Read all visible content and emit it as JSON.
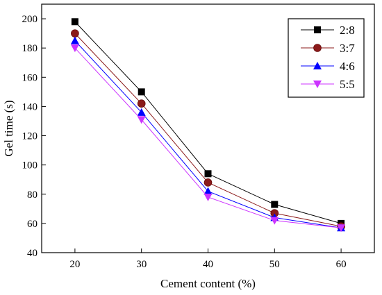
{
  "chart_data": {
    "type": "line",
    "title": "",
    "xlabel": "Cement content (%)",
    "ylabel": "Gel time (s)",
    "x": [
      20,
      30,
      40,
      50,
      60
    ],
    "xlim": [
      15,
      65
    ],
    "ylim": [
      40,
      210
    ],
    "xticks": [
      20,
      30,
      40,
      50,
      60
    ],
    "yticks": [
      40,
      60,
      80,
      100,
      120,
      140,
      160,
      180,
      200
    ],
    "grid": false,
    "legend_position": "top-right",
    "series": [
      {
        "name": "2:8",
        "values": [
          198,
          150,
          94,
          73,
          60
        ],
        "color": "#000000",
        "marker": "square"
      },
      {
        "name": "3:7",
        "values": [
          190,
          142,
          88,
          67,
          58
        ],
        "color": "#8b1a1a",
        "marker": "circle"
      },
      {
        "name": "4:6",
        "values": [
          185,
          136,
          82,
          64,
          57
        ],
        "color": "#0000ff",
        "marker": "triangle-up"
      },
      {
        "name": "5:5",
        "values": [
          180,
          131,
          78,
          62,
          57
        ],
        "color": "#cc33ff",
        "marker": "triangle-down"
      }
    ]
  }
}
